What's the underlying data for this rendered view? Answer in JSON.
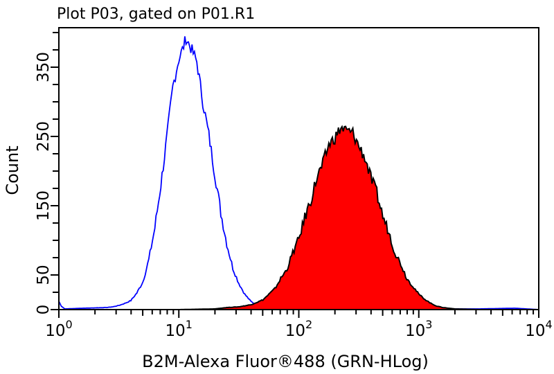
{
  "chart_data": {
    "type": "area",
    "title": "Plot P03, gated on P01.R1",
    "xlabel": "B2M-Alexa Fluor®488 (GRN-HLog)",
    "ylabel": "Count",
    "xscale": "log",
    "xlim": [
      1,
      10000
    ],
    "ylim": [
      0,
      400
    ],
    "x_tick_labels": [
      {
        "base": "10",
        "exp": "0",
        "value": 1
      },
      {
        "base": "10",
        "exp": "1",
        "value": 10
      },
      {
        "base": "10",
        "exp": "2",
        "value": 100
      },
      {
        "base": "10",
        "exp": "3",
        "value": 1000
      },
      {
        "base": "10",
        "exp": "4",
        "value": 10000
      }
    ],
    "y_tick_labels": [
      "0",
      "50",
      "150",
      "250",
      "350"
    ],
    "y_tick_values": [
      0,
      50,
      150,
      250,
      350
    ],
    "y_minor_step": 25,
    "grid": false,
    "series": [
      {
        "style": "outline",
        "color": "#0000ff",
        "log10_x": [
          0.0,
          0.02,
          0.05,
          0.2,
          0.4,
          0.45,
          0.5,
          0.55,
          0.6,
          0.65,
          0.7,
          0.75,
          0.8,
          0.85,
          0.9,
          0.95,
          1.0,
          1.03,
          1.06,
          1.1,
          1.15,
          1.2,
          1.25,
          1.3,
          1.35,
          1.4,
          1.45,
          1.5,
          1.55,
          1.6,
          1.65,
          1.7,
          1.75,
          1.8,
          2.0,
          2.5,
          3.0,
          3.5,
          3.8,
          4.0
        ],
        "values": [
          12,
          5,
          1,
          2,
          3,
          4,
          6,
          9,
          13,
          24,
          40,
          72,
          118,
          180,
          248,
          322,
          362,
          375,
          392,
          378,
          358,
          300,
          252,
          196,
          140,
          95,
          60,
          38,
          22,
          12,
          6,
          4,
          2,
          1,
          1,
          0,
          1,
          1,
          2,
          0
        ]
      },
      {
        "style": "filled",
        "color": "#ff0000",
        "outline_color": "#000000",
        "log10_x": [
          1.0,
          1.3,
          1.4,
          1.5,
          1.6,
          1.7,
          1.75,
          1.8,
          1.85,
          1.9,
          1.95,
          2.0,
          2.05,
          2.1,
          2.15,
          2.2,
          2.25,
          2.3,
          2.35,
          2.4,
          2.45,
          2.5,
          2.55,
          2.6,
          2.65,
          2.7,
          2.75,
          2.8,
          2.85,
          2.9,
          2.95,
          3.0,
          3.05,
          3.1,
          3.15,
          3.2,
          3.3,
          3.5,
          4.0
        ],
        "values": [
          0,
          1,
          3,
          4,
          7,
          14,
          22,
          30,
          45,
          58,
          82,
          102,
          133,
          158,
          190,
          210,
          238,
          248,
          262,
          258,
          255,
          236,
          220,
          190,
          168,
          135,
          112,
          83,
          66,
          45,
          34,
          22,
          15,
          9,
          5,
          3,
          1,
          0,
          0
        ]
      }
    ]
  }
}
